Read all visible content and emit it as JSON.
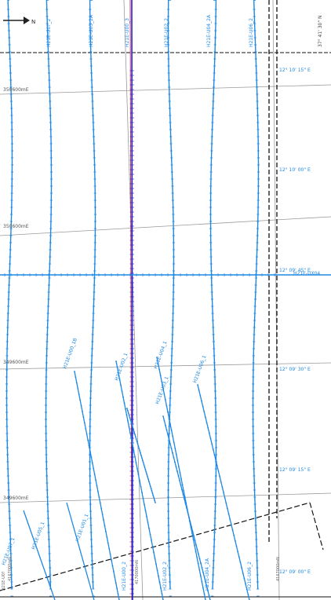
{
  "colors": {
    "survey_line": "#1e88e5",
    "survey_line_dark": "#1565c0",
    "highlight_line": "#2222cc",
    "highlight_accent": "#cc2255",
    "grid_line": "#9a9a9a",
    "boundary": "#111111",
    "background": "#ffffff"
  },
  "north_arrow": {
    "label": "N",
    "icon": "north-arrow-icon"
  },
  "top_line_labels": [
    "H21E_U00_2",
    "H21E_U02_1",
    "H21E_U02_2",
    "H21E_U04_2A",
    "H21E_U06_2",
    "H21E_U06_2"
  ],
  "top_line_label_texts": [
    "H21E-U0?_2",
    "H21E-U03_2A",
    "H21E-U00_3",
    "H21E-U02_2",
    "H21E-U04_2A",
    "H21E-U06_2"
  ],
  "top_right_latitude": "37° 41' 30\" N",
  "easting_labels": [
    "350600mE",
    "350600mE",
    "349600mE",
    "349600mE"
  ],
  "longitude_labels": [
    "12° 10' 15\" E",
    "12° 10' 00\" E",
    "12° 09' 45\" E",
    "12° 09' 30\" E",
    "12° 09' 15\" E",
    "12° 09' 00\" E"
  ],
  "crossline_label": "H21E-UX04",
  "diagonal_line_labels": [
    "H21E-U00_1B",
    "H21E-U02_1",
    "H21E-U04_1",
    "H21E-U06_1",
    "H21E-U03_1",
    "H21E-U05_1",
    "H21E-U01_1",
    "H21E-U07_1"
  ],
  "bottom_line_labels": [
    "H21E-U00_2",
    "H21E-U02_2",
    "H21E-U04_2A",
    "H21E-U06_2"
  ],
  "bottom_small_labels": [
    "4170000mN",
    "H21E-U0?",
    "4167000mN",
    "4167000mN"
  ]
}
